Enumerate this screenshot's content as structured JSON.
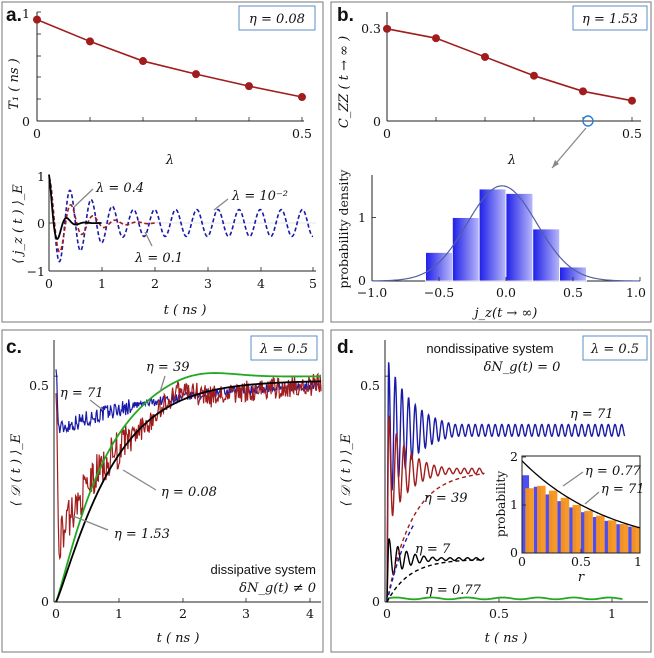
{
  "colors": {
    "dark_red": "#a11d1d",
    "navy": "#1a1aa8",
    "black": "#000000",
    "green": "#22a822",
    "orange": "#f7941d",
    "blue_bar": "#3a3af0",
    "panel_border": "#777777",
    "param_box": "#5b8cc4"
  },
  "chart_data": [
    {
      "panel": "a",
      "type": "line",
      "subplot": "top",
      "param_box": "η = 0.08",
      "xlabel": "λ",
      "ylabel": "T₁ ( ns )",
      "xlim": [
        0,
        0.5
      ],
      "ylim": [
        0,
        1
      ],
      "x_ticks": [
        "0",
        "0.5"
      ],
      "y_ticks": [
        "0",
        "1"
      ],
      "series": [
        {
          "name": "T1",
          "color": "#a11d1d",
          "marker": "circle",
          "x": [
            0,
            0.1,
            0.2,
            0.3,
            0.4,
            0.5
          ],
          "y": [
            0.93,
            0.73,
            0.55,
            0.43,
            0.32,
            0.22
          ]
        }
      ]
    },
    {
      "panel": "a",
      "type": "line",
      "subplot": "bottom",
      "xlabel": "t   ( ns )",
      "ylabel": "⟨ j_z ( t ) ⟩_E",
      "xlim": [
        0,
        5
      ],
      "ylim": [
        -1,
        1
      ],
      "x_ticks": [
        "0",
        "1",
        "2",
        "3",
        "4",
        "5"
      ],
      "y_ticks": [
        "−1",
        "0",
        "1"
      ],
      "annotations": [
        "λ = 0.4",
        "λ = 10⁻²",
        "λ = 0.1"
      ],
      "series": [
        {
          "name": "λ = 10⁻²",
          "color": "#1a1aa8",
          "dash": true,
          "model": "damped_cosine",
          "amplitude": 0.95,
          "period_ns": 0.4,
          "decay_ns": 1.2,
          "floor_amplitude": 0.28,
          "t_end": 5
        },
        {
          "name": "λ = 0.1",
          "color": "#a11d1d",
          "dash": true,
          "model": "damped_cosine",
          "amplitude": 0.95,
          "period_ns": 0.42,
          "decay_ns": 0.45,
          "floor_amplitude": 0.0,
          "t_end": 2.05
        },
        {
          "name": "λ = 0.4",
          "color": "#000000",
          "dash": false,
          "model": "damped_cosine",
          "amplitude": 1.0,
          "period_ns": 0.35,
          "decay_ns": 0.15,
          "floor_amplitude": 0.0,
          "t_end": 1.0
        }
      ]
    },
    {
      "panel": "b",
      "type": "line",
      "subplot": "top",
      "param_box": "η = 1.53",
      "xlabel": "λ",
      "ylabel": "C_ZZ ( t → ∞ )",
      "xlim": [
        0,
        0.5
      ],
      "ylim": [
        0,
        0.32
      ],
      "x_ticks": [
        "0",
        "0.5"
      ],
      "y_ticks": [
        "0",
        "0.3"
      ],
      "series": [
        {
          "name": "Czz",
          "color": "#a11d1d",
          "marker": "circle",
          "x": [
            0,
            0.1,
            0.2,
            0.3,
            0.4,
            0.5
          ],
          "y": [
            0.295,
            0.265,
            0.205,
            0.145,
            0.095,
            0.065
          ]
        }
      ],
      "highlighted_point": {
        "x": 0.4,
        "y": 0.0
      }
    },
    {
      "panel": "b",
      "type": "bar",
      "subplot": "bottom",
      "xlabel": "j_z(t → ∞)",
      "ylabel": "probability density",
      "xlim": [
        -1,
        1
      ],
      "ylim": [
        0,
        1.75
      ],
      "x_ticks": [
        "−1.0",
        "−0.5",
        "0.0",
        "0.5",
        "1.0"
      ],
      "y_ticks": [
        "0",
        "1"
      ],
      "bin_edges": [
        -0.6,
        -0.4,
        -0.2,
        0.0,
        0.2,
        0.4,
        0.6
      ],
      "values": [
        0.45,
        1.0,
        1.45,
        1.38,
        0.82,
        0.22
      ],
      "bar_color": "#3a3af0",
      "fit_curve": {
        "model": "gaussian",
        "mean": -0.03,
        "sigma": 0.26,
        "peak": 1.5,
        "color": "#5060a0"
      }
    },
    {
      "panel": "c",
      "type": "line",
      "param_box": "λ = 0.5",
      "xlabel": "t   ( ns )",
      "ylabel": "⟨ 𝒟 ( t ) ⟩_E",
      "xlim": [
        0,
        4.2
      ],
      "ylim": [
        0,
        0.58
      ],
      "x_ticks": [
        "0",
        "1",
        "2",
        "3",
        "4"
      ],
      "y_ticks": [
        "0",
        "0.5"
      ],
      "annotations": [
        "η = 39",
        "η = 71",
        "η = 0.08",
        "η = 1.53"
      ],
      "caption_lines": [
        "dissipative system",
        "δN_g(t) ≠ 0"
      ],
      "series": [
        {
          "name": "η = 71",
          "color": "#1a1aa8",
          "model": "noisy_relax",
          "start": 0.38,
          "level": 0.49,
          "rate": 0.55,
          "noise": 0.018
        },
        {
          "name": "η = 39",
          "color": "#a11d1d",
          "model": "noisy_relax",
          "start": 0.12,
          "level": 0.49,
          "rate": 0.9,
          "noise": 0.045
        },
        {
          "name": "η = 1.53",
          "color": "#22a822",
          "model": "smooth_relax",
          "start": 0.0,
          "level": 0.5,
          "rate": 1.35,
          "overshoot": 0.02
        },
        {
          "name": "η = 0.08",
          "color": "#000000",
          "model": "smooth_relax",
          "start": 0.0,
          "level": 0.49,
          "rate": 1.1,
          "overshoot": 0.0
        }
      ]
    },
    {
      "panel": "d",
      "type": "line",
      "param_box": "λ = 0.5",
      "xlabel": "t   ( ns )",
      "ylabel": "⟨ 𝒟 ( t ) ⟩_E",
      "xlim": [
        0,
        1.1
      ],
      "ylim": [
        0,
        0.58
      ],
      "x_ticks": [
        "0",
        "0.5",
        "1"
      ],
      "y_ticks": [
        "0",
        "0.5"
      ],
      "annotations": [
        "η = 71",
        "η = 39",
        "η = 7",
        "η = 0.77"
      ],
      "caption_lines": [
        "nondissipative system",
        "δN_g(t) = 0"
      ],
      "series": [
        {
          "name": "η = 71",
          "color": "#1a1aa8",
          "model": "oscillation",
          "mean": 0.38,
          "amp0": 0.16,
          "amp_floor": 0.013,
          "decay": 0.12,
          "freq": 34,
          "t_end": 1.05
        },
        {
          "name": "η = 39",
          "color": "#a11d1d",
          "model": "oscillation",
          "mean": 0.29,
          "amp0": 0.13,
          "amp_floor": 0.006,
          "decay": 0.09,
          "freq": 30,
          "t_end": 0.43
        },
        {
          "name": "η = 7",
          "color": "#000000",
          "model": "oscillation",
          "mean": 0.095,
          "amp0": 0.05,
          "amp_floor": 0.003,
          "decay": 0.08,
          "freq": 26,
          "t_end": 0.43
        },
        {
          "name": "η = 0.77",
          "color": "#22a822",
          "model": "flat",
          "mean": 0.008,
          "t_end": 1.05
        },
        {
          "name": "η = 39 envelope",
          "color": "#a11d1d",
          "dash": true,
          "model": "envelope",
          "level": 0.29,
          "rate": 9.0,
          "t_end": 0.43
        },
        {
          "name": "η = 39 envelope alt",
          "color": "#1a1aa8",
          "dash": true,
          "model": "envelope",
          "level": 0.28,
          "rate": 8.0,
          "t_end": 0.12
        },
        {
          "name": "η = 7 envelope",
          "color": "#000000",
          "dash": true,
          "model": "envelope",
          "level": 0.095,
          "rate": 10.0,
          "t_end": 0.43
        }
      ],
      "inset": {
        "type": "bar",
        "xlabel": "r",
        "ylabel": "probability",
        "xlim": [
          0,
          1
        ],
        "ylim": [
          0,
          2
        ],
        "x_ticks": [
          "0",
          "0.5",
          "1"
        ],
        "y_ticks": [
          "0",
          "1",
          "2"
        ],
        "annotations": [
          "η = 0.77",
          "η = 71"
        ],
        "bin_edges": [
          0,
          0.1,
          0.2,
          0.3,
          0.4,
          0.5,
          0.6,
          0.7,
          0.8,
          0.9,
          1.0
        ],
        "series": [
          {
            "name": "η = 0.77",
            "color": "#3a3af0",
            "values": [
              1.62,
              1.38,
              1.22,
              1.08,
              0.95,
              0.85,
              0.75,
              0.67,
              0.6,
              0.55
            ]
          },
          {
            "name": "η = 71",
            "color": "#f7941d",
            "values": [
              1.35,
              1.4,
              1.3,
              1.15,
              1.0,
              0.88,
              0.78,
              0.68,
              0.6,
              0.55
            ]
          }
        ],
        "fit_curve": {
          "model": "exponential",
          "a": 1.92,
          "b": 1.3,
          "color": "#000000"
        }
      }
    }
  ]
}
